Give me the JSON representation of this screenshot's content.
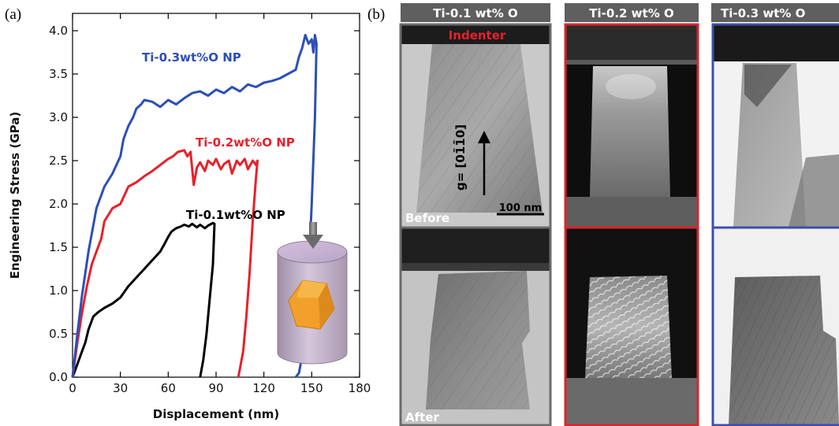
{
  "panel_a_label": "(a)",
  "panel_b_label": "(b)",
  "chart_data": {
    "type": "line",
    "xlabel": "Displacement (nm)",
    "ylabel": "Engineering Stress (GPa)",
    "xlim": [
      0,
      180
    ],
    "ylim": [
      0,
      4.2
    ],
    "xticks": [
      0,
      30,
      60,
      90,
      120,
      150,
      180
    ],
    "yticks": [
      0.0,
      0.5,
      1.0,
      1.5,
      2.0,
      2.5,
      3.0,
      3.5,
      4.0
    ],
    "xtick_labels": [
      "0",
      "30",
      "60",
      "90",
      "120",
      "150",
      "180"
    ],
    "ytick_labels": [
      "0.0",
      "0.5",
      "1.0",
      "1.5",
      "2.0",
      "2.5",
      "3.0",
      "3.5",
      "4.0"
    ],
    "grid": false,
    "series": [
      {
        "name": "Ti-0.1wt%O NP",
        "color": "#000000",
        "x": [
          0,
          3,
          6,
          8,
          10,
          13,
          16,
          20,
          25,
          30,
          35,
          40,
          45,
          50,
          55,
          58,
          60,
          62,
          65,
          68,
          70,
          73,
          75,
          78,
          80,
          83,
          85,
          88,
          89,
          88,
          86,
          84,
          82,
          80
        ],
        "y": [
          0,
          0.15,
          0.3,
          0.4,
          0.55,
          0.7,
          0.75,
          0.8,
          0.85,
          0.92,
          1.05,
          1.15,
          1.25,
          1.35,
          1.45,
          1.55,
          1.62,
          1.68,
          1.72,
          1.74,
          1.76,
          1.74,
          1.77,
          1.73,
          1.76,
          1.72,
          1.75,
          1.78,
          1.77,
          1.3,
          0.9,
          0.5,
          0.2,
          0
        ]
      },
      {
        "name": "Ti-0.2wt%O NP",
        "color": "#e8212b",
        "x": [
          0,
          3,
          6,
          9,
          12,
          15,
          18,
          20,
          25,
          30,
          35,
          40,
          45,
          50,
          55,
          60,
          63,
          66,
          70,
          72,
          74,
          76,
          78,
          80,
          83,
          85,
          88,
          90,
          93,
          95,
          98,
          100,
          103,
          105,
          108,
          110,
          113,
          115,
          116,
          115,
          113,
          111,
          109,
          107,
          105,
          104
        ],
        "y": [
          0,
          0.4,
          0.75,
          1.05,
          1.3,
          1.45,
          1.6,
          1.8,
          1.95,
          2.0,
          2.2,
          2.25,
          2.32,
          2.38,
          2.45,
          2.52,
          2.55,
          2.6,
          2.62,
          2.55,
          2.6,
          2.22,
          2.42,
          2.48,
          2.38,
          2.5,
          2.45,
          2.52,
          2.4,
          2.46,
          2.5,
          2.35,
          2.5,
          2.45,
          2.52,
          2.4,
          2.5,
          2.45,
          2.5,
          2.3,
          1.8,
          1.2,
          0.7,
          0.3,
          0.1,
          0
        ]
      },
      {
        "name": "Ti-0.3wt%O NP",
        "color": "#2c4fb8",
        "x": [
          0,
          3,
          6,
          10,
          15,
          20,
          25,
          30,
          32,
          35,
          38,
          40,
          43,
          45,
          50,
          55,
          60,
          65,
          70,
          75,
          80,
          85,
          90,
          95,
          100,
          105,
          110,
          115,
          120,
          125,
          130,
          135,
          140,
          142,
          144,
          146,
          148,
          150,
          151,
          152,
          153,
          152,
          150,
          148,
          146,
          144,
          142,
          140
        ],
        "y": [
          0,
          0.5,
          0.95,
          1.45,
          1.95,
          2.2,
          2.35,
          2.55,
          2.75,
          2.9,
          3.0,
          3.1,
          3.15,
          3.2,
          3.18,
          3.12,
          3.2,
          3.15,
          3.22,
          3.28,
          3.3,
          3.25,
          3.32,
          3.28,
          3.35,
          3.3,
          3.38,
          3.35,
          3.4,
          3.42,
          3.45,
          3.5,
          3.55,
          3.7,
          3.8,
          3.95,
          3.85,
          3.9,
          3.75,
          3.95,
          3.85,
          3.0,
          2.0,
          1.2,
          0.6,
          0.25,
          0.05,
          0
        ]
      }
    ],
    "series_label_colors": [
      "#000000",
      "#e8212b",
      "#2c4fb8"
    ]
  },
  "micrographs": {
    "columns": [
      {
        "header": "Ti-0.1 wt% O",
        "frame_color": "#6b6b6b"
      },
      {
        "header": "Ti-0.2 wt% O",
        "frame_color": "#d9262b"
      },
      {
        "header": "Ti-0.3 wt% O",
        "frame_color": "#3b4fa8"
      }
    ],
    "indenter_label": "Indenter",
    "g_vector_label": "g= [01̄1̄0]",
    "scale_bar_label": "100 nm",
    "before_label": "Before",
    "after_label": "After"
  }
}
